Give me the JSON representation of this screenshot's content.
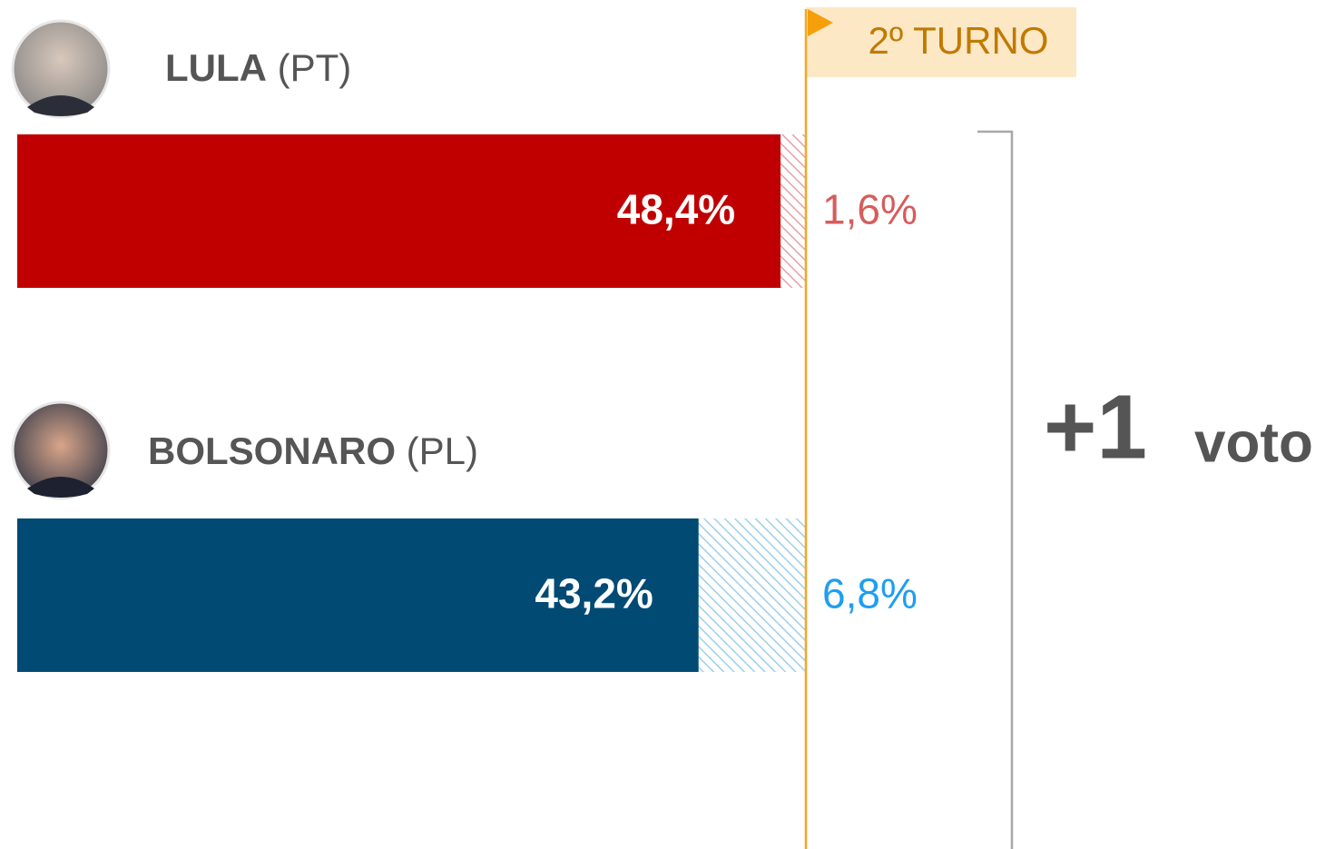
{
  "chart_data": {
    "type": "bar",
    "orientation": "horizontal",
    "stacked": true,
    "categories": [
      "LULA",
      "BOLSONARO"
    ],
    "parties": [
      "(PT)",
      "(PL)"
    ],
    "xlim": [
      0,
      50
    ],
    "series": [
      {
        "colors": [
          "#c00000",
          "#004a74"
        ],
        "label_color": "#ffffff",
        "hatched": false,
        "values": [
          48.4,
          43.2
        ],
        "value_labels": [
          "48,4%",
          "43,2%"
        ]
      },
      {
        "colors": [
          "#e3a3a3",
          "#9fcfea"
        ],
        "label_colors": [
          "#d75c5c",
          "#1e9ef0"
        ],
        "hatched": true,
        "values": [
          1.6,
          6.8
        ],
        "value_labels": [
          "1,6%",
          "6,8%"
        ]
      }
    ],
    "threshold_label": "2º TURNO",
    "annotation": {
      "big": "+1",
      "text": "voto"
    }
  }
}
